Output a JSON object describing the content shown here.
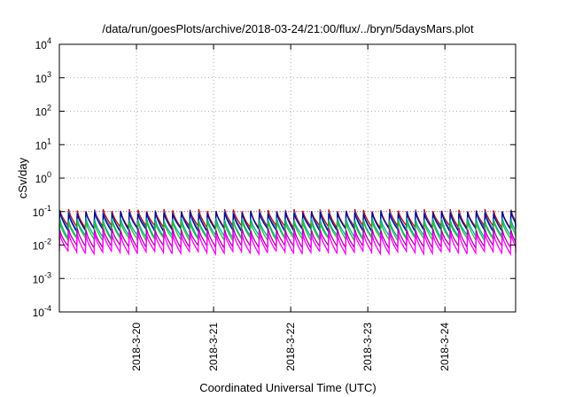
{
  "chart_data": {
    "type": "line",
    "title": "/data/run/goesPlots/archive/2018-03-24/21:00/flux/../bryn/5daysMars.plot",
    "xlabel": "Coordinated Universal Time (UTC)",
    "ylabel": "cSv/day",
    "yscale": "log",
    "ylim": [
      0.0001,
      10000
    ],
    "y_ticks": [
      {
        "base": "10",
        "exp": "-4",
        "value": 0.0001
      },
      {
        "base": "10",
        "exp": "-3",
        "value": 0.001
      },
      {
        "base": "10",
        "exp": "-2",
        "value": 0.01
      },
      {
        "base": "10",
        "exp": "-1",
        "value": 0.1
      },
      {
        "base": "10",
        "exp": "0",
        "value": 1
      },
      {
        "base": "10",
        "exp": "1",
        "value": 10
      },
      {
        "base": "10",
        "exp": "2",
        "value": 100
      },
      {
        "base": "10",
        "exp": "3",
        "value": 1000
      },
      {
        "base": "10",
        "exp": "4",
        "value": 10000
      }
    ],
    "xlim": [
      "2018-03-19T00:00",
      "2018-03-24T22:00"
    ],
    "x_ticks": [
      {
        "label": "2018-3-20",
        "value": "2018-03-20T00:00"
      },
      {
        "label": "2018-3-21",
        "value": "2018-03-21T00:00"
      },
      {
        "label": "2018-3-22",
        "value": "2018-03-22T00:00"
      },
      {
        "label": "2018-3-23",
        "value": "2018-03-23T00:00"
      },
      {
        "label": "2018-3-24",
        "value": "2018-03-24T00:00"
      }
    ],
    "grid": true,
    "reference_line": {
      "value": 0.1,
      "color": "#e05050",
      "style": "dotted"
    },
    "cycle_period_hours": 2.7,
    "series": [
      {
        "color": "#cc0000",
        "peak": 0.11,
        "trough": 0.035
      },
      {
        "color": "#1f6fd6",
        "peak": 0.1,
        "trough": 0.03
      },
      {
        "color": "#0a0a8a",
        "peak": 0.095,
        "trough": 0.028
      },
      {
        "color": "#00aaaa",
        "peak": 0.06,
        "trough": 0.018
      },
      {
        "color": "#33bb33",
        "peak": 0.05,
        "trough": 0.015
      },
      {
        "color": "#aa00aa",
        "peak": 0.03,
        "trough": 0.009
      },
      {
        "color": "#ff00ff",
        "peak": 0.022,
        "trough": 0.006
      }
    ]
  }
}
